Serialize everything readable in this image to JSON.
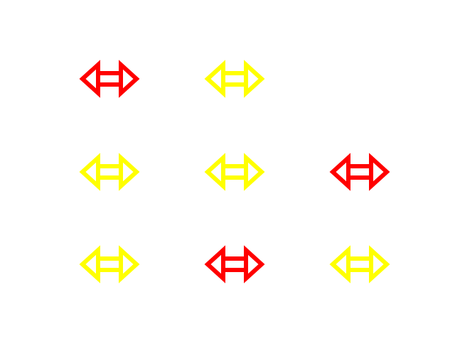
{
  "colors": {
    "background": "#ffffff",
    "red": "#ff0000",
    "yellow": "#ffff00"
  },
  "grid": {
    "rows": 3,
    "columns": 3
  },
  "arrows": [
    {
      "row": 1,
      "col": 1,
      "icon": "double-headed-arrow",
      "color": "red"
    },
    {
      "row": 1,
      "col": 2,
      "icon": "double-headed-arrow",
      "color": "yellow"
    },
    {
      "row": 2,
      "col": 1,
      "icon": "double-headed-arrow",
      "color": "yellow"
    },
    {
      "row": 2,
      "col": 2,
      "icon": "double-headed-arrow",
      "color": "yellow"
    },
    {
      "row": 2,
      "col": 3,
      "icon": "double-headed-arrow",
      "color": "red"
    },
    {
      "row": 3,
      "col": 1,
      "icon": "double-headed-arrow",
      "color": "yellow"
    },
    {
      "row": 3,
      "col": 2,
      "icon": "double-headed-arrow",
      "color": "red"
    },
    {
      "row": 3,
      "col": 3,
      "icon": "double-headed-arrow",
      "color": "yellow"
    }
  ]
}
